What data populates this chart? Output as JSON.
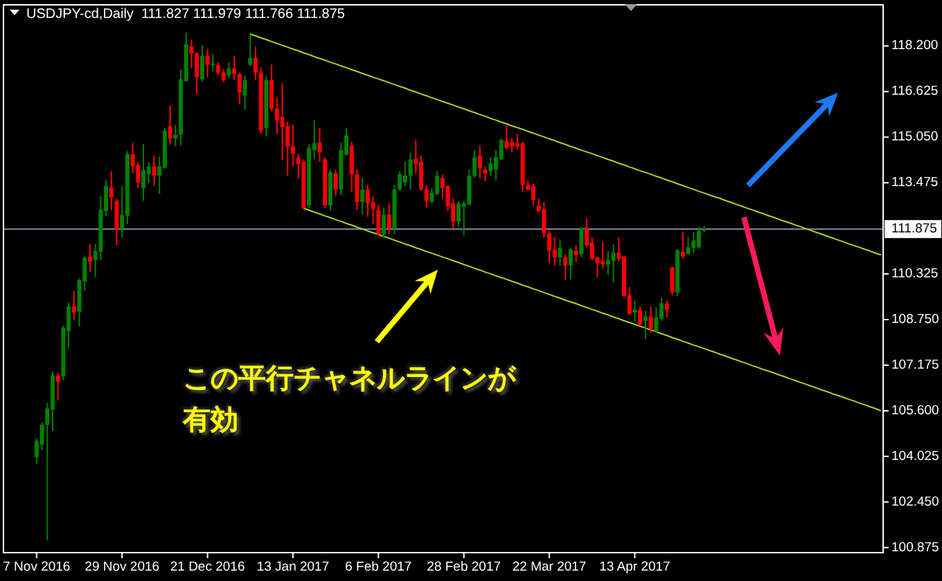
{
  "chart_data": {
    "type": "candlestick",
    "title": "USDJPY-cd,Daily  111.827 111.979 111.766 111.875",
    "categories": [
      "7 Nov 2016",
      null,
      null,
      null,
      null,
      null,
      null,
      null,
      null,
      null,
      null,
      null,
      null,
      null,
      null,
      null,
      "29 Nov 2016",
      null,
      null,
      null,
      null,
      null,
      null,
      null,
      null,
      null,
      null,
      null,
      null,
      null,
      null,
      null,
      "21 Dec 2016",
      null,
      null,
      null,
      null,
      null,
      null,
      null,
      null,
      null,
      null,
      null,
      null,
      null,
      null,
      null,
      "13 Jan 2017",
      null,
      null,
      null,
      null,
      null,
      null,
      null,
      null,
      null,
      null,
      null,
      null,
      null,
      null,
      null,
      "6 Feb 2017",
      null,
      null,
      null,
      null,
      null,
      null,
      null,
      null,
      null,
      null,
      null,
      null,
      null,
      null,
      null,
      "28 Feb 2017",
      null,
      null,
      null,
      null,
      null,
      null,
      null,
      null,
      null,
      null,
      null,
      null,
      null,
      null,
      null,
      "22 Mar 2017",
      null,
      null,
      null,
      null,
      null,
      null,
      null,
      null,
      null,
      null,
      null,
      null,
      null,
      null,
      null,
      "13 Apr 2017",
      null,
      null,
      null,
      null,
      null,
      null,
      null,
      null,
      null,
      null,
      null,
      null,
      null,
      null,
      null,
      null,
      null,
      null,
      null,
      null,
      null,
      null,
      null,
      null,
      null,
      null,
      null,
      null,
      null,
      null,
      null,
      null,
      null,
      null,
      null,
      null,
      null,
      null,
      null,
      null,
      null,
      null,
      null,
      null,
      null,
      null
    ],
    "ohlc": [
      [
        104.0,
        104.64,
        103.76,
        104.56
      ],
      [
        104.43,
        105.2,
        104.24,
        105.12
      ],
      [
        105.12,
        105.87,
        101.13,
        105.68
      ],
      [
        105.64,
        106.95,
        104.91,
        106.82
      ],
      [
        106.82,
        106.92,
        105.96,
        106.6
      ],
      [
        106.79,
        108.54,
        106.66,
        108.46
      ],
      [
        108.35,
        109.34,
        107.75,
        109.21
      ],
      [
        109.21,
        109.74,
        108.73,
        108.99
      ],
      [
        109.02,
        110.17,
        108.51,
        110.11
      ],
      [
        110.06,
        110.93,
        109.74,
        110.89
      ],
      [
        110.93,
        111.36,
        110.41,
        110.74
      ],
      [
        110.81,
        111.35,
        110.22,
        111.12
      ],
      [
        111.09,
        113.01,
        110.81,
        112.56
      ],
      [
        112.5,
        113.56,
        112.34,
        113.37
      ],
      [
        113.32,
        113.88,
        112.53,
        112.97
      ],
      [
        112.85,
        112.93,
        111.32,
        111.86
      ],
      [
        111.89,
        113.37,
        111.6,
        112.37
      ],
      [
        112.34,
        114.57,
        112.05,
        114.47
      ],
      [
        114.47,
        114.85,
        113.8,
        114.04
      ],
      [
        114.09,
        114.2,
        113.29,
        113.48
      ],
      [
        113.29,
        114.81,
        112.85,
        113.91
      ],
      [
        113.77,
        114.18,
        113.48,
        114.04
      ],
      [
        114.04,
        114.41,
        113.37,
        113.72
      ],
      [
        113.72,
        114.38,
        113.09,
        114.04
      ],
      [
        113.99,
        115.36,
        113.96,
        115.28
      ],
      [
        115.43,
        116.14,
        114.79,
        115.0
      ],
      [
        115.0,
        115.47,
        114.73,
        115.14
      ],
      [
        115.14,
        117.39,
        114.76,
        117.05
      ],
      [
        116.99,
        118.68,
        116.96,
        118.26
      ],
      [
        118.18,
        118.42,
        117.43,
        117.94
      ],
      [
        117.94,
        117.98,
        116.54,
        117.12
      ],
      [
        117.05,
        118.23,
        116.96,
        117.86
      ],
      [
        117.86,
        118.1,
        117.12,
        117.55
      ],
      [
        117.55,
        117.91,
        117.31,
        117.59
      ],
      [
        117.55,
        117.63,
        117.18,
        117.28
      ],
      [
        117.28,
        117.39,
        116.96,
        117.02
      ],
      [
        117.18,
        117.63,
        117.07,
        117.42
      ],
      [
        117.43,
        117.86,
        117.02,
        117.23
      ],
      [
        117.23,
        117.28,
        116.19,
        116.59
      ],
      [
        116.48,
        117.18,
        116.0,
        117.02
      ],
      [
        117.55,
        118.61,
        117.5,
        117.79
      ],
      [
        117.79,
        118.18,
        117.02,
        117.28
      ],
      [
        117.28,
        117.47,
        115.16,
        115.27
      ],
      [
        115.36,
        117.18,
        115.08,
        117.02
      ],
      [
        117.02,
        117.55,
        115.95,
        116.03
      ],
      [
        116.03,
        116.43,
        115.16,
        115.63
      ],
      [
        115.75,
        116.91,
        114.25,
        115.4
      ],
      [
        115.43,
        115.59,
        113.72,
        114.73
      ],
      [
        114.73,
        115.47,
        114.04,
        114.47
      ],
      [
        114.34,
        114.47,
        113.61,
        114.12
      ],
      [
        114.2,
        114.28,
        112.56,
        112.61
      ],
      [
        112.69,
        114.79,
        112.61,
        114.68
      ],
      [
        114.6,
        115.63,
        114.28,
        114.84
      ],
      [
        114.87,
        115.36,
        114.2,
        114.52
      ],
      [
        114.28,
        114.36,
        112.61,
        112.69
      ],
      [
        112.69,
        113.93,
        112.5,
        113.83
      ],
      [
        113.8,
        113.93,
        113.01,
        113.24
      ],
      [
        113.24,
        114.87,
        113.04,
        114.6
      ],
      [
        114.44,
        115.36,
        114.41,
        115.11
      ],
      [
        114.76,
        114.89,
        113.16,
        113.77
      ],
      [
        113.77,
        113.93,
        112.53,
        112.81
      ],
      [
        112.81,
        113.64,
        112.37,
        113.24
      ],
      [
        113.24,
        113.4,
        112.29,
        112.77
      ],
      [
        112.8,
        113.01,
        112.05,
        112.56
      ],
      [
        112.53,
        112.72,
        111.65,
        111.7
      ],
      [
        111.7,
        112.61,
        111.57,
        112.37
      ],
      [
        112.37,
        112.77,
        111.7,
        111.89
      ],
      [
        111.89,
        113.4,
        111.7,
        113.24
      ],
      [
        113.24,
        113.88,
        113.2,
        113.77
      ],
      [
        113.48,
        114.2,
        113.36,
        113.72
      ],
      [
        113.72,
        114.52,
        113.24,
        114.28
      ],
      [
        114.31,
        114.95,
        113.8,
        114.12
      ],
      [
        114.2,
        114.41,
        113.2,
        113.24
      ],
      [
        113.24,
        113.4,
        112.61,
        112.85
      ],
      [
        112.81,
        113.29,
        112.77,
        113.13
      ],
      [
        113.09,
        113.88,
        113.04,
        113.72
      ],
      [
        113.64,
        113.77,
        112.93,
        113.29
      ],
      [
        113.36,
        113.4,
        112.5,
        112.65
      ],
      [
        112.77,
        112.93,
        111.89,
        112.13
      ],
      [
        112.13,
        112.85,
        111.97,
        112.77
      ],
      [
        112.65,
        112.85,
        111.65,
        112.77
      ],
      [
        112.72,
        113.93,
        112.69,
        113.72
      ],
      [
        113.72,
        114.6,
        113.64,
        114.36
      ],
      [
        114.41,
        114.76,
        113.64,
        113.99
      ],
      [
        113.93,
        114.04,
        113.52,
        113.8
      ],
      [
        113.88,
        114.36,
        113.72,
        114.15
      ],
      [
        113.93,
        114.6,
        113.56,
        114.36
      ],
      [
        114.28,
        115.0,
        114.25,
        114.95
      ],
      [
        114.92,
        115.47,
        114.63,
        114.68
      ],
      [
        114.89,
        115.0,
        114.52,
        114.73
      ],
      [
        114.84,
        115.16,
        114.63,
        114.73
      ],
      [
        114.84,
        114.89,
        113.16,
        113.4
      ],
      [
        113.4,
        113.56,
        113.2,
        113.24
      ],
      [
        113.36,
        113.45,
        112.69,
        112.88
      ],
      [
        112.69,
        112.93,
        112.45,
        112.5
      ],
      [
        112.56,
        112.81,
        111.57,
        111.73
      ],
      [
        111.73,
        111.81,
        110.7,
        111.12
      ],
      [
        111.17,
        111.6,
        110.62,
        110.9
      ],
      [
        110.9,
        111.49,
        110.62,
        111.22
      ],
      [
        110.9,
        111.01,
        110.11,
        110.62
      ],
      [
        110.62,
        111.22,
        110.14,
        111.17
      ],
      [
        111.12,
        111.32,
        110.74,
        110.97
      ],
      [
        111.01,
        111.95,
        110.9,
        111.92
      ],
      [
        111.92,
        112.24,
        111.25,
        111.32
      ],
      [
        111.41,
        111.6,
        110.81,
        110.85
      ],
      [
        110.9,
        110.93,
        110.22,
        110.7
      ],
      [
        110.77,
        111.44,
        110.52,
        110.66
      ],
      [
        110.65,
        111.12,
        110.3,
        110.81
      ],
      [
        110.77,
        111.35,
        110.04,
        111.06
      ],
      [
        111.06,
        111.6,
        110.74,
        110.85
      ],
      [
        110.93,
        110.93,
        109.53,
        109.56
      ],
      [
        109.6,
        109.88,
        108.91,
        108.94
      ],
      [
        108.99,
        109.4,
        108.67,
        109.09
      ],
      [
        109.09,
        109.21,
        108.54,
        108.58
      ],
      [
        108.7,
        109.05,
        108.07,
        108.86
      ],
      [
        108.86,
        109.21,
        108.29,
        108.42
      ],
      [
        108.35,
        109.17,
        108.29,
        108.83
      ],
      [
        108.78,
        109.5,
        108.7,
        109.31
      ],
      [
        109.31,
        109.42,
        108.83,
        109.09
      ],
      [
        110.55,
        110.58,
        109.6,
        109.69
      ],
      [
        109.69,
        111.19,
        109.56,
        111.14
      ],
      [
        111.09,
        111.79,
        110.85,
        110.93
      ],
      [
        111.01,
        111.6,
        110.98,
        111.25
      ],
      [
        111.22,
        111.76,
        111.06,
        111.48
      ],
      [
        111.25,
        111.95,
        111.19,
        111.81
      ],
      [
        111.827,
        111.979,
        111.766,
        111.875
      ],
      null,
      null,
      null,
      null,
      null,
      null,
      null,
      null,
      null,
      null,
      null,
      null,
      null,
      null,
      null,
      null,
      null,
      null,
      null,
      null,
      null,
      null,
      null,
      null,
      null,
      null,
      null,
      null,
      null,
      null,
      null,
      null,
      null
    ],
    "colors": [
      "#008000",
      "#008000",
      "#008000",
      "#008000",
      "#ff0000",
      "#008000",
      "#008000",
      "#ff0000",
      "#008000",
      "#008000",
      "#ff0000",
      "#008000",
      "#008000",
      "#008000",
      "#ff0000",
      "#ff0000",
      "#008000",
      "#008000",
      "#ff0000",
      "#ff0000",
      "#008000",
      "#008000",
      "#ff0000",
      "#008000",
      "#008000",
      "#ff0000",
      "#008000",
      "#008000",
      "#008000",
      "#ff0000",
      "#ff0000",
      "#008000",
      "#ff0000",
      "#008000",
      "#ff0000",
      "#ff0000",
      "#008000",
      "#ff0000",
      "#ff0000",
      "#008000",
      "#008000",
      "#ff0000",
      "#ff0000",
      "#008000",
      "#ff0000",
      "#ff0000",
      "#ff0000",
      "#ff0000",
      "#ff0000",
      "#ff0000",
      "#ff0000",
      "#008000",
      "#008000",
      "#ff0000",
      "#ff0000",
      "#008000",
      "#ff0000",
      "#008000",
      "#008000",
      "#ff0000",
      "#ff0000",
      "#008000",
      "#ff0000",
      "#ff0000",
      "#ff0000",
      "#008000",
      "#ff0000",
      "#008000",
      "#008000",
      "#008000",
      "#008000",
      "#ff0000",
      "#ff0000",
      "#ff0000",
      "#008000",
      "#008000",
      "#ff0000",
      "#ff0000",
      "#ff0000",
      "#008000",
      "#008000",
      "#008000",
      "#008000",
      "#ff0000",
      "#ff0000",
      "#008000",
      "#008000",
      "#008000",
      "#ff0000",
      "#ff0000",
      "#ff0000",
      "#ff0000",
      "#ff0000",
      "#ff0000",
      "#ff0000",
      "#ff0000",
      "#ff0000",
      "#ff0000",
      "#008000",
      "#ff0000",
      "#008000",
      "#ff0000",
      "#008000",
      "#ff0000",
      "#ff0000",
      "#ff0000",
      "#ff0000",
      "#008000",
      "#008000",
      "#ff0000",
      "#ff0000",
      "#ff0000",
      "#008000",
      "#ff0000",
      "#008000",
      "#ff0000",
      "#008000",
      "#008000",
      "#ff0000",
      "#ff0000",
      "#008000",
      "#ff0000",
      "#008000",
      "#008000",
      "#008000",
      "#008000",
      null,
      null,
      null,
      null,
      null,
      null,
      null,
      null,
      null,
      null,
      null,
      null,
      null,
      null,
      null,
      null,
      null,
      null,
      null,
      null,
      null,
      null,
      null,
      null,
      null,
      null,
      null,
      null,
      null,
      null,
      null,
      null,
      null
    ],
    "series": [
      {
        "type": "line",
        "color": "#aad22a",
        "values": [
          null,
          null,
          null,
          null,
          null,
          null,
          null,
          null,
          null,
          null,
          null,
          null,
          null,
          null,
          null,
          null,
          null,
          null,
          null,
          null,
          null,
          null,
          null,
          null,
          null,
          null,
          null,
          null,
          null,
          null,
          null,
          null,
          null,
          null,
          null,
          null,
          null,
          null,
          null,
          null,
          118.61,
          118.55,
          118.48,
          118.42,
          118.35,
          118.29,
          118.22,
          118.16,
          118.09,
          118.03,
          117.96,
          117.9,
          117.83,
          117.77,
          117.71,
          117.64,
          117.58,
          117.51,
          117.45,
          117.38,
          117.32,
          117.25,
          117.19,
          117.12,
          117.06,
          117.0,
          116.93,
          116.87,
          116.8,
          116.74,
          116.67,
          116.61,
          116.54,
          116.48,
          116.41,
          116.35,
          116.28,
          116.22,
          116.16,
          116.09,
          116.03,
          115.96,
          115.9,
          115.83,
          115.77,
          115.7,
          115.64,
          115.57,
          115.51,
          115.44,
          115.38,
          115.32,
          115.25,
          115.19,
          115.12,
          115.06,
          114.99,
          114.93,
          114.86,
          114.8,
          114.73,
          114.67,
          114.6,
          114.54,
          114.48,
          114.41,
          114.35,
          114.28,
          114.22,
          114.15,
          114.09,
          114.02,
          113.96,
          113.89,
          113.83,
          113.77,
          113.7,
          113.64,
          113.57,
          113.51,
          113.44,
          113.38,
          113.31,
          113.25,
          113.18,
          113.12,
          113.05,
          112.99,
          112.93,
          112.86,
          112.8,
          112.73,
          112.67,
          112.6,
          112.54,
          112.47,
          112.41,
          112.34,
          112.28,
          112.21,
          112.15,
          112.09,
          112.02,
          111.96,
          111.89,
          111.83,
          111.76,
          111.7,
          111.63,
          111.57,
          111.5,
          111.44,
          111.37,
          111.31,
          111.25,
          111.18,
          111.12,
          111.05,
          110.99
        ]
      },
      {
        "type": "line",
        "color": "#aad22a",
        "values": [
          null,
          null,
          null,
          null,
          null,
          null,
          null,
          null,
          null,
          null,
          null,
          null,
          null,
          null,
          null,
          null,
          null,
          null,
          null,
          null,
          null,
          null,
          null,
          null,
          null,
          null,
          null,
          null,
          null,
          null,
          null,
          null,
          null,
          null,
          null,
          null,
          null,
          null,
          null,
          null,
          null,
          null,
          null,
          null,
          null,
          null,
          null,
          null,
          null,
          null,
          112.59,
          112.53,
          112.46,
          112.4,
          112.33,
          112.27,
          112.2,
          112.14,
          112.07,
          112.01,
          111.94,
          111.88,
          111.81,
          111.75,
          111.69,
          111.62,
          111.56,
          111.49,
          111.43,
          111.36,
          111.3,
          111.23,
          111.17,
          111.1,
          111.04,
          110.98,
          110.91,
          110.85,
          110.78,
          110.72,
          110.65,
          110.59,
          110.52,
          110.46,
          110.39,
          110.33,
          110.26,
          110.2,
          110.14,
          110.07,
          110.01,
          109.94,
          109.88,
          109.81,
          109.75,
          109.68,
          109.62,
          109.55,
          109.49,
          109.42,
          109.36,
          109.3,
          109.23,
          109.17,
          109.1,
          109.04,
          108.97,
          108.91,
          108.84,
          108.78,
          108.71,
          108.65,
          108.58,
          108.52,
          108.46,
          108.39,
          108.33,
          108.26,
          108.2,
          108.13,
          108.07,
          108.0,
          107.94,
          107.87,
          107.81,
          107.75,
          107.68,
          107.62,
          107.55,
          107.49,
          107.42,
          107.36,
          107.29,
          107.23,
          107.16,
          107.1,
          107.03,
          106.97,
          106.91,
          106.84,
          106.78,
          106.71,
          106.65,
          106.58,
          106.52,
          106.45,
          106.39,
          106.32,
          106.26,
          106.19,
          106.13,
          106.07,
          106.0,
          105.94,
          105.87,
          105.81,
          105.74,
          105.68,
          105.61
        ]
      }
    ],
    "ylim": [
      100.7,
      119.62
    ],
    "yticks": [
      {
        "value": 118.2,
        "label": "118.200"
      },
      116.625,
      {
        "value": 115.05,
        "label": "115.050"
      },
      113.475,
      110.325,
      {
        "value": 108.75,
        "label": "108.750"
      },
      107.175,
      {
        "value": 105.6,
        "label": "105.600"
      },
      104.025,
      {
        "value": 102.45,
        "label": "102.450"
      },
      100.875
    ],
    "ref_lines": [
      {
        "axis": "y",
        "value": 111.875,
        "label": "111.875",
        "color": "#8090a8"
      }
    ],
    "annotations": [
      "この平行チャネルラインが有効"
    ]
  }
}
